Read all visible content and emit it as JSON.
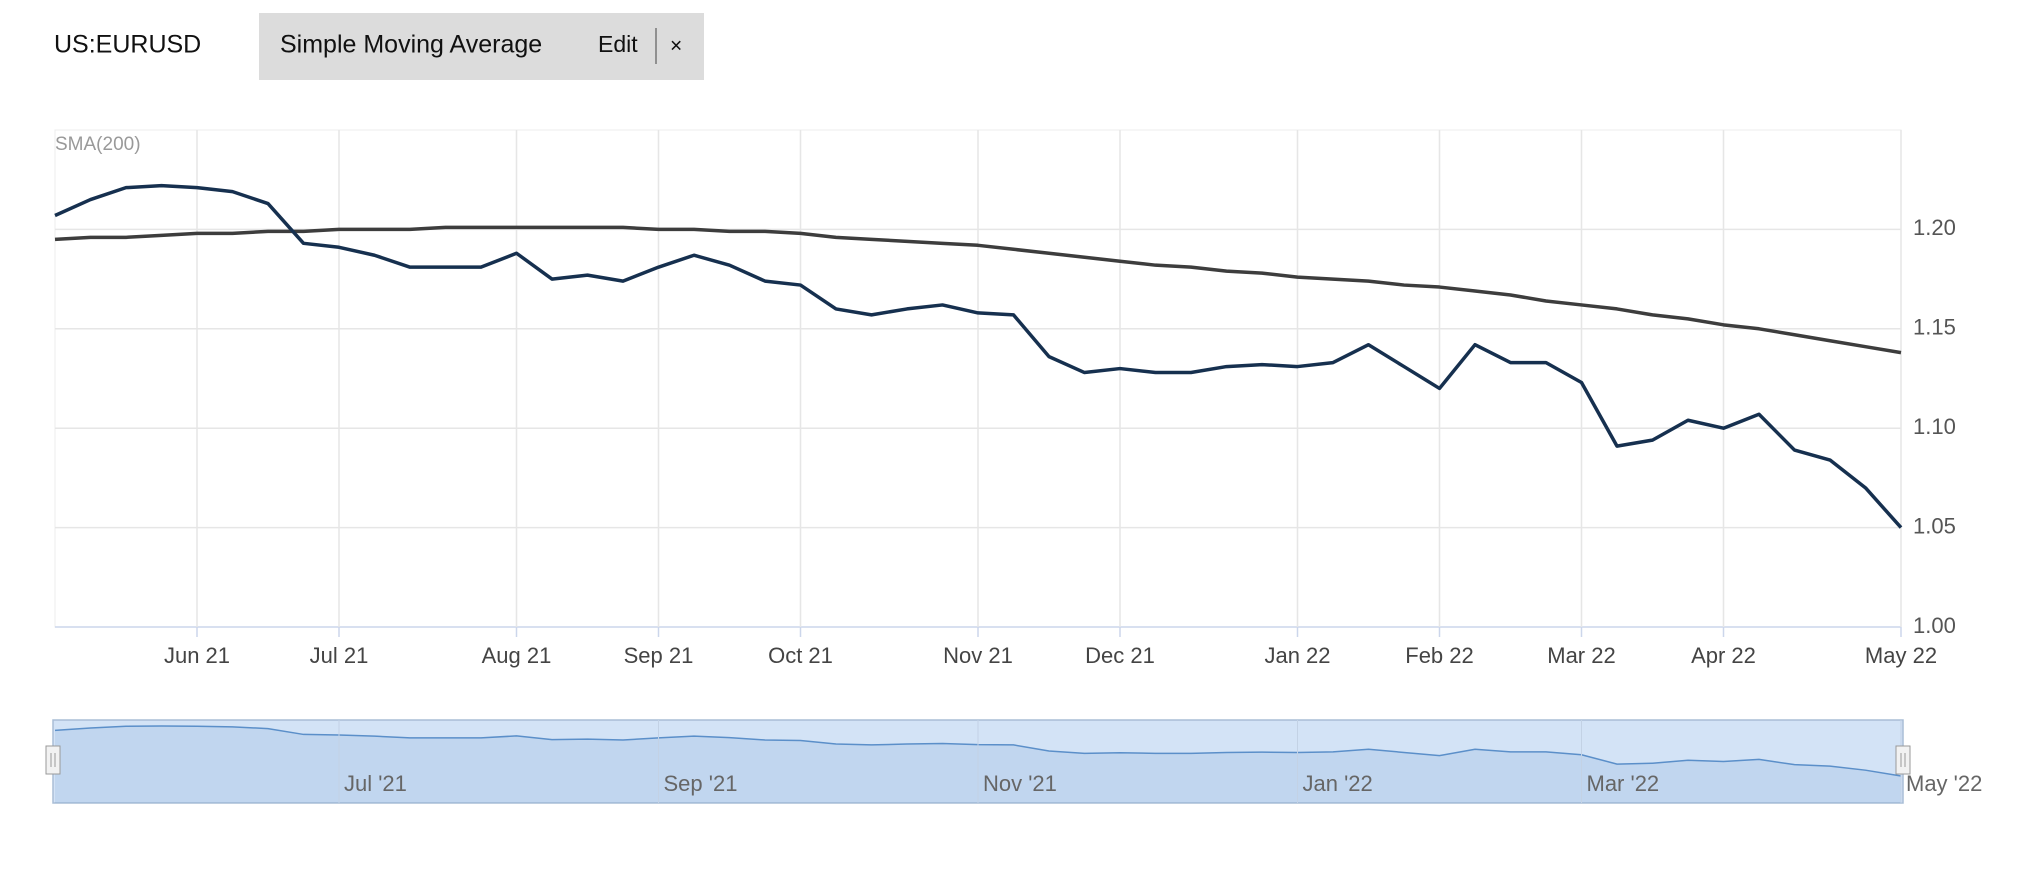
{
  "header": {
    "indicator": "Simple Moving Average",
    "edit": "Edit",
    "close": "×"
  },
  "chart_data": [
    {
      "type": "line",
      "categories": [
        null,
        null,
        null,
        null,
        "Jun 21",
        null,
        null,
        null,
        "Jul 21",
        null,
        null,
        null,
        null,
        "Aug 21",
        null,
        null,
        null,
        "Sep 21",
        null,
        null,
        null,
        "Oct 21",
        null,
        null,
        null,
        null,
        "Nov 21",
        null,
        null,
        null,
        "Dec 21",
        null,
        null,
        null,
        null,
        "Jan 22",
        null,
        null,
        null,
        "Feb 22",
        null,
        null,
        null,
        "Mar 22",
        null,
        null,
        null,
        "Apr 22",
        null,
        null,
        null,
        null,
        "May 22"
      ],
      "series": [
        {
          "name": "US:EURUSD",
          "color": "#16304f",
          "values": [
            1.207,
            1.215,
            1.221,
            1.222,
            1.221,
            1.219,
            1.213,
            1.193,
            1.191,
            1.187,
            1.181,
            1.181,
            1.181,
            1.188,
            1.175,
            1.177,
            1.174,
            1.181,
            1.187,
            1.182,
            1.174,
            1.172,
            1.16,
            1.157,
            1.16,
            1.162,
            1.158,
            1.157,
            1.136,
            1.128,
            1.13,
            1.128,
            1.128,
            1.131,
            1.132,
            1.131,
            1.133,
            1.142,
            1.131,
            1.12,
            1.142,
            1.133,
            1.133,
            1.123,
            1.091,
            1.094,
            1.104,
            1.1,
            1.107,
            1.089,
            1.084,
            1.07,
            1.05
          ]
        },
        {
          "name": "SMA(200)",
          "color": "#3d3d3d",
          "values": [
            1.195,
            1.196,
            1.196,
            1.197,
            1.198,
            1.198,
            1.199,
            1.199,
            1.2,
            1.2,
            1.2,
            1.201,
            1.201,
            1.201,
            1.201,
            1.201,
            1.201,
            1.2,
            1.2,
            1.199,
            1.199,
            1.198,
            1.196,
            1.195,
            1.194,
            1.193,
            1.192,
            1.19,
            1.188,
            1.186,
            1.184,
            1.182,
            1.181,
            1.179,
            1.178,
            1.176,
            1.175,
            1.174,
            1.172,
            1.171,
            1.169,
            1.167,
            1.164,
            1.162,
            1.16,
            1.157,
            1.155,
            1.152,
            1.15,
            1.147,
            1.144,
            1.141,
            1.138
          ]
        }
      ],
      "ylim": [
        1.0,
        1.25
      ],
      "yticks": [
        {
          "value": 1.0,
          "label": "1.00"
        },
        1.05,
        {
          "value": 1.1,
          "label": "1.10"
        },
        1.15,
        {
          "value": 1.2,
          "label": "1.20"
        }
      ],
      "grid": true
    },
    {
      "type": "area",
      "categories": [
        null,
        null,
        null,
        null,
        null,
        null,
        null,
        null,
        "Jul '21",
        null,
        null,
        null,
        null,
        null,
        null,
        null,
        null,
        "Sep '21",
        null,
        null,
        null,
        null,
        null,
        null,
        null,
        null,
        "Nov '21",
        null,
        null,
        null,
        null,
        null,
        null,
        null,
        null,
        "Jan '22",
        null,
        null,
        null,
        null,
        null,
        null,
        null,
        "Mar '22",
        null,
        null,
        null,
        null,
        null,
        null,
        null,
        null,
        "May '22"
      ],
      "color": "#5b8fc9"
    }
  ]
}
